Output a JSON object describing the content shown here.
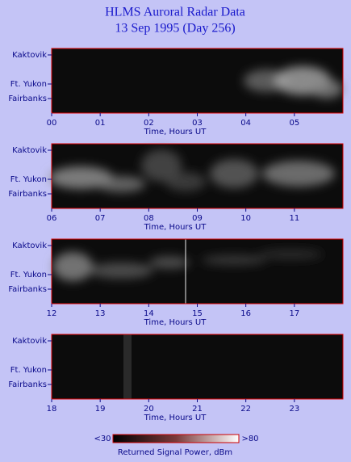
{
  "title": "HLMS Auroral Radar Data",
  "subtitle": "13 Sep 1995 (Day 256)",
  "chart_data": [
    {
      "type": "image",
      "xlabel": "Time, Hours UT",
      "ylabels": [
        "Kaktovik",
        "Ft. Yukon",
        "Fairbanks"
      ],
      "xlim": [
        0,
        6
      ],
      "xticks": [
        {
          "value": 0,
          "label": "00"
        },
        {
          "value": 1,
          "label": "01"
        },
        {
          "value": 2,
          "label": "02"
        },
        {
          "value": 3,
          "label": "03"
        },
        {
          "value": 4,
          "label": "04"
        },
        {
          "value": 5,
          "label": "05"
        }
      ]
    },
    {
      "type": "image",
      "xlabel": "Time, Hours UT",
      "ylabels": [
        "Kaktovik",
        "Ft. Yukon",
        "Fairbanks"
      ],
      "xlim": [
        6,
        12
      ],
      "xticks": [
        {
          "value": 6,
          "label": "06"
        },
        {
          "value": 7,
          "label": "07"
        },
        {
          "value": 8,
          "label": "08"
        },
        {
          "value": 9,
          "label": "09"
        },
        10,
        11
      ]
    },
    {
      "type": "image",
      "xlabel": "Time, Hours UT",
      "ylabels": [
        "Kaktovik",
        "Ft. Yukon",
        "Fairbanks"
      ],
      "xlim": [
        12,
        18
      ],
      "xticks": [
        12,
        13,
        14,
        15,
        16,
        17
      ]
    },
    {
      "type": "image",
      "xlabel": "Time, Hours UT",
      "ylabels": [
        "Kaktovik",
        "Ft. Yukon",
        "Fairbanks"
      ],
      "xlim": [
        18,
        24
      ],
      "xticks": [
        18,
        19,
        20,
        21,
        22,
        23
      ]
    }
  ],
  "colorbar": {
    "low_label": "<30",
    "high_label": ">80",
    "title": "Returned Signal Power, dBm"
  }
}
